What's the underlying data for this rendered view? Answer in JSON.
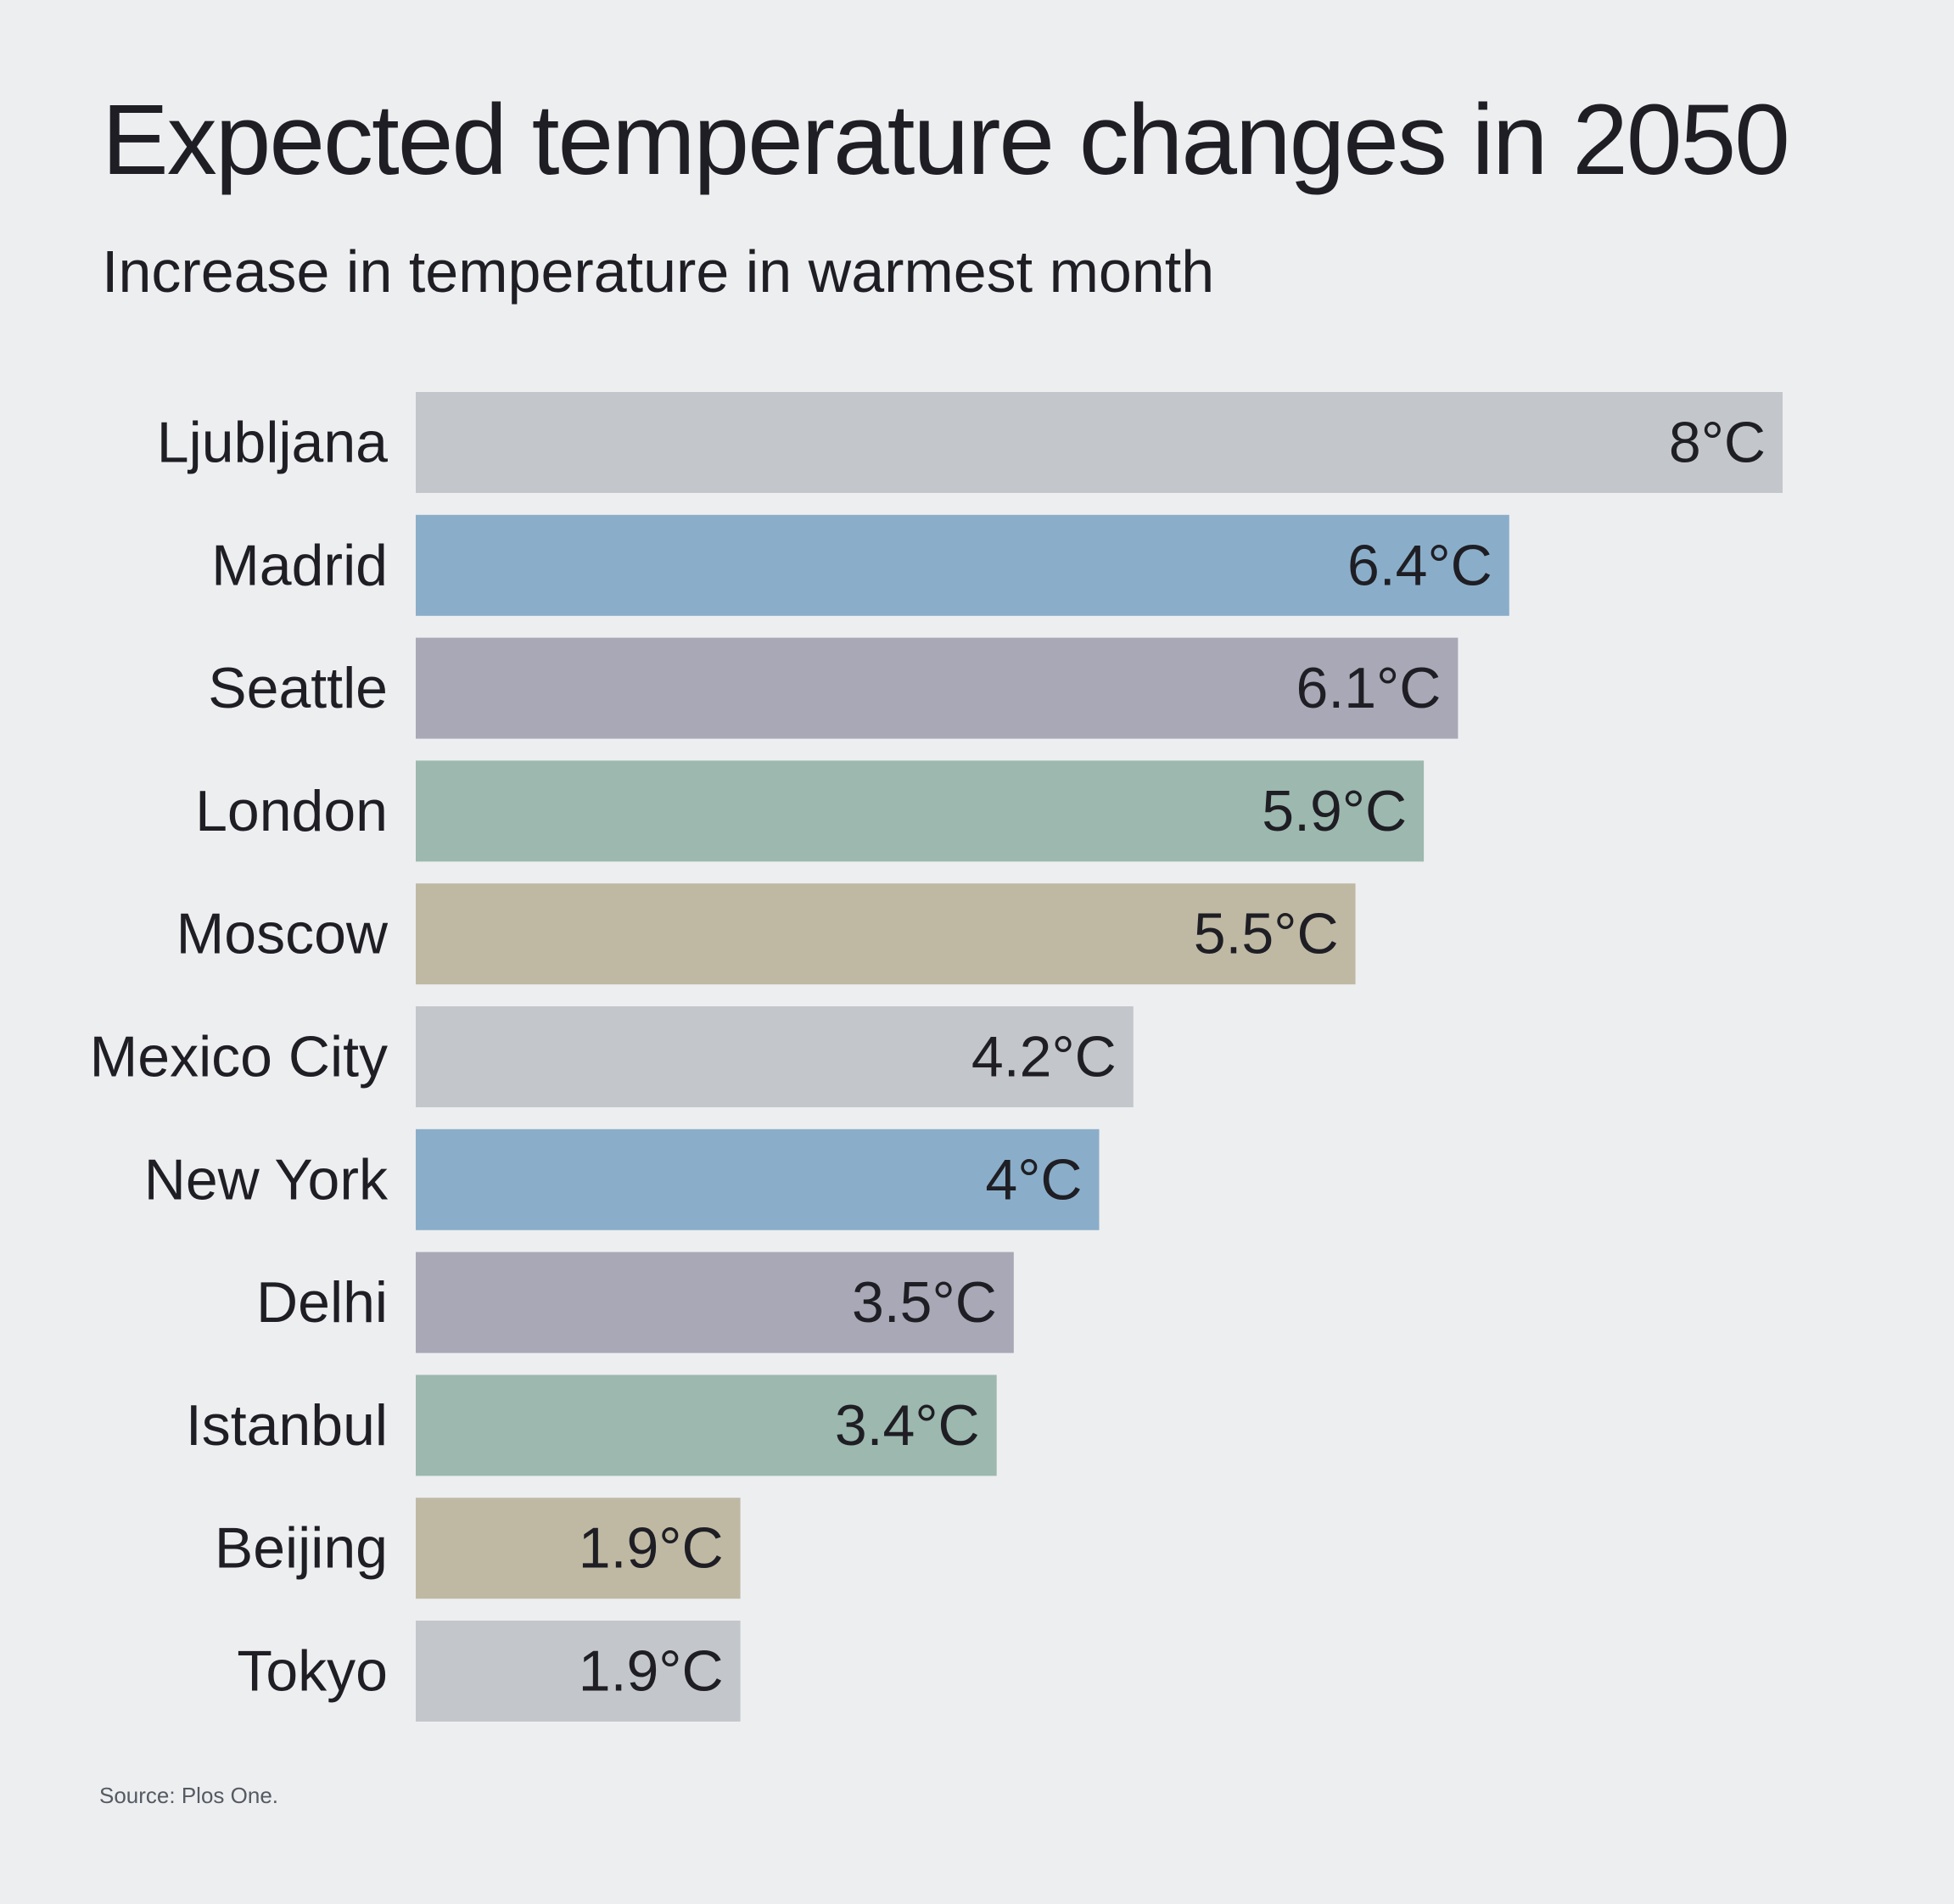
{
  "title": "Expected temperature changes in 2050",
  "subtitle": "Increase in temperature in warmest month",
  "source": "Source: Plos One.",
  "chart_data": {
    "type": "bar",
    "orientation": "horizontal",
    "title": "Expected temperature changes in 2050",
    "subtitle": "Increase in temperature in warmest month",
    "categories": [
      "Ljubljana",
      "Madrid",
      "Seattle",
      "London",
      "Moscow",
      "Mexico City",
      "New York",
      "Delhi",
      "Istanbul",
      "Beijing",
      "Tokyo"
    ],
    "values": [
      8,
      6.4,
      6.1,
      5.9,
      5.5,
      4.2,
      4,
      3.5,
      3.4,
      1.9,
      1.9
    ],
    "data_labels": [
      "8°C",
      "6.4°C",
      "6.1°C",
      "5.9°C",
      "5.5°C",
      "4.2°C",
      "4°C",
      "3.5°C",
      "3.4°C",
      "1.9°C",
      "1.9°C"
    ],
    "colors": [
      "#c3c6cb",
      "#8aaec9",
      "#a8a8b6",
      "#9db8ae",
      "#bfb9a4",
      "#c3c6cb",
      "#8aaec9",
      "#a8a8b6",
      "#9db8ae",
      "#bfb9a4",
      "#c3c6cb"
    ],
    "unit": "°C",
    "xlim": [
      0,
      8
    ],
    "grid": false,
    "legend": "none"
  }
}
